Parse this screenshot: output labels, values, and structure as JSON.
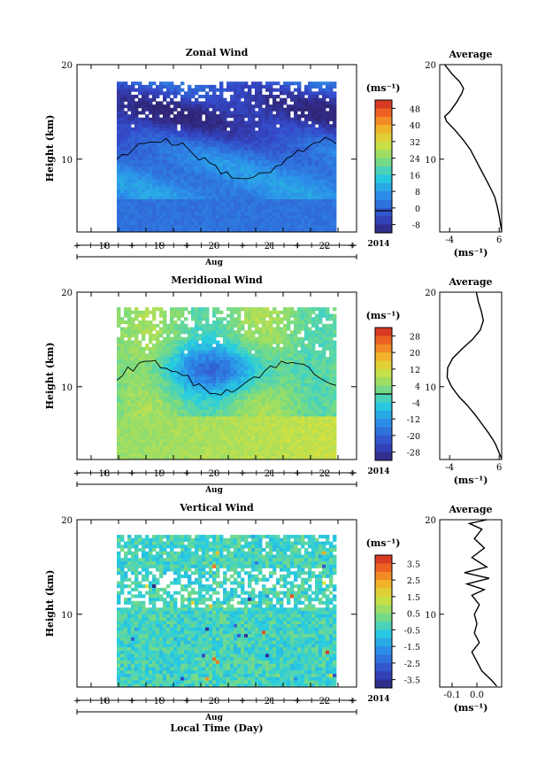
{
  "chart_data": [
    {
      "type": "heatmap",
      "title": "Zonal Wind",
      "ylabel": "Height (km)",
      "y_ticks": [
        "20",
        "10"
      ],
      "ylim": [
        2.3,
        20
      ],
      "x_ticks": [
        "18",
        "19",
        "20",
        "21",
        "22"
      ],
      "x_unit": "Aug",
      "year": "2014",
      "colorbar": {
        "label": "(ms⁻¹)",
        "ticks": [
          "48",
          "40",
          "32",
          "24",
          "16",
          "8",
          "0",
          "-8"
        ],
        "range": [
          -10,
          50
        ],
        "zero_line": 0
      },
      "profile": {
        "title": "Average",
        "xlabel": "(ms⁻¹)",
        "x_ticks": [
          "-4",
          "6"
        ],
        "y_ticks": [
          "20",
          "10"
        ],
        "xlim": [
          -6,
          6.5
        ],
        "points": [
          [
            6.5,
            2.4
          ],
          [
            6.3,
            3
          ],
          [
            6.0,
            4
          ],
          [
            5.6,
            5
          ],
          [
            5.1,
            6
          ],
          [
            4.2,
            7
          ],
          [
            3.2,
            8
          ],
          [
            2.2,
            9
          ],
          [
            1.2,
            10
          ],
          [
            0.2,
            11
          ],
          [
            -1.2,
            12
          ],
          [
            -2.8,
            13
          ],
          [
            -4.6,
            14
          ],
          [
            -5.0,
            14.5
          ],
          [
            -4.0,
            15
          ],
          [
            -2.6,
            16
          ],
          [
            -1.5,
            17
          ],
          [
            -1.2,
            17.5
          ],
          [
            -2.0,
            18.2
          ],
          [
            -3.5,
            19
          ],
          [
            -5.0,
            20
          ]
        ]
      },
      "colors": {
        "low": "#3f2f8a",
        "high": "#d12d24"
      }
    },
    {
      "type": "heatmap",
      "title": "Meridional Wind",
      "ylabel": "Height (km)",
      "y_ticks": [
        "20",
        "10"
      ],
      "ylim": [
        2.3,
        20
      ],
      "x_ticks": [
        "18",
        "19",
        "20",
        "21",
        "22"
      ],
      "x_unit": "Aug",
      "year": "2014",
      "colorbar": {
        "label": "(ms⁻¹)",
        "ticks": [
          "28",
          "20",
          "12",
          "4",
          "-4",
          "-12",
          "-20",
          "-28"
        ],
        "range": [
          -32,
          32
        ],
        "zero_line": 0
      },
      "profile": {
        "title": "Average",
        "xlabel": "(ms⁻¹)",
        "x_ticks": [
          "-4",
          "6"
        ],
        "y_ticks": [
          "20",
          "10"
        ],
        "xlim": [
          -6,
          6.5
        ],
        "points": [
          [
            6.5,
            2.4
          ],
          [
            6.0,
            3
          ],
          [
            5.2,
            4
          ],
          [
            4.0,
            5
          ],
          [
            2.6,
            6
          ],
          [
            1.2,
            7
          ],
          [
            -0.4,
            8
          ],
          [
            -2.2,
            9
          ],
          [
            -3.6,
            10
          ],
          [
            -4.5,
            11
          ],
          [
            -4.4,
            12
          ],
          [
            -3.4,
            13
          ],
          [
            -1.5,
            14
          ],
          [
            0.6,
            15
          ],
          [
            2.2,
            16
          ],
          [
            2.8,
            17
          ],
          [
            2.4,
            18
          ],
          [
            1.8,
            19
          ],
          [
            1.4,
            20
          ]
        ]
      },
      "colors": {
        "low": "#3f2f8a",
        "high": "#d12d24"
      }
    },
    {
      "type": "heatmap",
      "title": "Vertical Wind",
      "ylabel": "Height (km)",
      "y_ticks": [
        "20",
        "10"
      ],
      "ylim": [
        2.3,
        20
      ],
      "x_ticks": [
        "18",
        "19",
        "20",
        "21",
        "22"
      ],
      "x_unit": "Aug",
      "year": "2014",
      "xlabel": "Local Time (Day)",
      "colorbar": {
        "label": "(ms⁻¹)",
        "ticks": [
          "3.5",
          "2.5",
          "1.5",
          "0.5",
          "-0.5",
          "-1.5",
          "-2.5",
          "-3.5"
        ],
        "range": [
          -4,
          4
        ]
      },
      "profile": {
        "title": "Average",
        "xlabel": "(ms⁻¹)",
        "x_ticks": [
          "-0.1",
          "0.0"
        ],
        "y_ticks": [
          "20",
          "10"
        ],
        "xlim": [
          -0.15,
          0.1
        ],
        "points": [
          [
            0.08,
            2.4
          ],
          [
            0.06,
            3
          ],
          [
            0.02,
            4
          ],
          [
            0.0,
            5
          ],
          [
            -0.02,
            6
          ],
          [
            0.01,
            7
          ],
          [
            -0.01,
            8
          ],
          [
            0.0,
            9
          ],
          [
            -0.01,
            10
          ],
          [
            0.01,
            11
          ],
          [
            -0.02,
            12
          ],
          [
            0.03,
            12.6
          ],
          [
            -0.04,
            13.2
          ],
          [
            0.05,
            13.8
          ],
          [
            -0.05,
            14.4
          ],
          [
            0.04,
            15
          ],
          [
            -0.02,
            16
          ],
          [
            0.03,
            17
          ],
          [
            -0.01,
            18
          ],
          [
            0.02,
            19
          ],
          [
            -0.03,
            19.6
          ],
          [
            0.04,
            20
          ]
        ]
      },
      "colors": {
        "low": "#3f2f8a",
        "high": "#d12d24"
      }
    }
  ],
  "footer": {
    "xlabel": "Local Time (Day)"
  }
}
